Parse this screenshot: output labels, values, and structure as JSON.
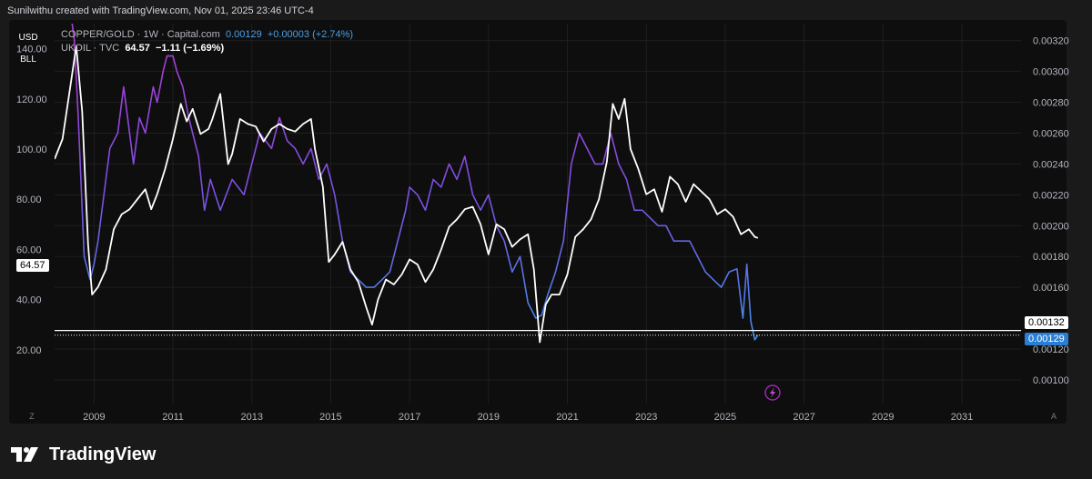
{
  "header": {
    "text": "Sunilwithu created with TradingView.com, Nov 01, 2025 23:46 UTC-4"
  },
  "unit_buttons": [
    "USD",
    "BLL"
  ],
  "legend": {
    "copper_gold": {
      "symbol": "COPPER/GOLD · 1W · Capital.com",
      "value": "0.00129",
      "change": "+0.00003 (+2.74%)"
    },
    "ukoil": {
      "symbol": "UKOIL · TVC",
      "value": "64.57",
      "change": "−1.11 (−1.69%)"
    }
  },
  "price_tags": {
    "left_current": "64.57",
    "right_line": "0.00132",
    "right_current": "0.00129"
  },
  "corner_buttons": {
    "left": "Z",
    "right": "A"
  },
  "footer": {
    "brand": "TradingView"
  },
  "colors": {
    "background": "#1a1a1a",
    "plot_bg": "#0e0e0e",
    "oil_line": "#ffffff",
    "ratio_high": "#b03ad6",
    "ratio_mid": "#7b4fe0",
    "ratio_low": "#3f8fe8",
    "grid": "#1f1f1f",
    "accent_circle": "#9c27b0"
  },
  "icons": {
    "footer_logo": "tradingview-logo-icon",
    "event_marker": "lightning-icon"
  },
  "chart_data": {
    "type": "line",
    "title": "",
    "x_ticks": [
      "2009",
      "2011",
      "2013",
      "2015",
      "2017",
      "2019",
      "2021",
      "2023",
      "2025",
      "2027",
      "2029",
      "2031"
    ],
    "x_range": [
      2008.0,
      2032.5
    ],
    "left_axis": {
      "label": "UKOIL (USD/BLL)",
      "ticks": [
        "140.00",
        "120.00",
        "100.00",
        "80.00",
        "60.00",
        "40.00",
        "20.00"
      ],
      "range": [
        0,
        150
      ]
    },
    "right_axis": {
      "label": "COPPER/GOLD",
      "ticks": [
        "0.00320",
        "0.00300",
        "0.00280",
        "0.00260",
        "0.00240",
        "0.00220",
        "0.00200",
        "0.00180",
        "0.00160",
        "0.00120",
        "0.00100"
      ],
      "range": [
        0.00087,
        0.00331
      ]
    },
    "horizontal_line": 0.00132,
    "series": [
      {
        "name": "UKOIL · TVC",
        "axis": "left",
        "x": [
          2008.0,
          2008.2,
          2008.4,
          2008.55,
          2008.7,
          2008.85,
          2008.95,
          2009.1,
          2009.3,
          2009.5,
          2009.7,
          2009.9,
          2010.1,
          2010.3,
          2010.45,
          2010.6,
          2010.8,
          2011.0,
          2011.2,
          2011.35,
          2011.5,
          2011.7,
          2011.9,
          2012.0,
          2012.2,
          2012.4,
          2012.5,
          2012.7,
          2012.9,
          2013.1,
          2013.3,
          2013.5,
          2013.7,
          2013.9,
          2014.1,
          2014.3,
          2014.5,
          2014.6,
          2014.8,
          2014.95,
          2015.1,
          2015.3,
          2015.5,
          2015.7,
          2015.9,
          2016.05,
          2016.2,
          2016.4,
          2016.6,
          2016.8,
          2017.0,
          2017.2,
          2017.4,
          2017.6,
          2017.8,
          2018.0,
          2018.2,
          2018.4,
          2018.6,
          2018.8,
          2019.0,
          2019.2,
          2019.4,
          2019.6,
          2019.8,
          2020.0,
          2020.15,
          2020.3,
          2020.45,
          2020.6,
          2020.8,
          2021.0,
          2021.2,
          2021.4,
          2021.6,
          2021.8,
          2022.0,
          2022.15,
          2022.3,
          2022.45,
          2022.6,
          2022.8,
          2023.0,
          2023.2,
          2023.4,
          2023.6,
          2023.8,
          2024.0,
          2024.2,
          2024.4,
          2024.6,
          2024.8,
          2025.0,
          2025.2,
          2025.4,
          2025.6,
          2025.75,
          2025.83
        ],
        "values": [
          96,
          104,
          125,
          141,
          115,
          62,
          42,
          45,
          52,
          68,
          74,
          76,
          80,
          84,
          76,
          82,
          92,
          104,
          118,
          111,
          116,
          106,
          108,
          112,
          122,
          94,
          98,
          112,
          110,
          109,
          103,
          108,
          110,
          108,
          107,
          110,
          112,
          100,
          85,
          55,
          58,
          63,
          52,
          47,
          37,
          30,
          40,
          48,
          46,
          50,
          56,
          54,
          47,
          52,
          60,
          69,
          72,
          76,
          77,
          70,
          58,
          70,
          68,
          61,
          64,
          66,
          52,
          23,
          38,
          42,
          42,
          50,
          65,
          68,
          72,
          80,
          95,
          118,
          112,
          120,
          100,
          92,
          82,
          84,
          75,
          89,
          86,
          79,
          86,
          83,
          80,
          74,
          76,
          73,
          66,
          68,
          65,
          64.57
        ]
      },
      {
        "name": "COPPER/GOLD · 1W · Capital.com",
        "axis": "right",
        "x": [
          2008.0,
          2008.2,
          2008.4,
          2008.5,
          2008.6,
          2008.75,
          2008.9,
          2009.0,
          2009.1,
          2009.25,
          2009.4,
          2009.6,
          2009.75,
          2009.9,
          2010.0,
          2010.15,
          2010.3,
          2010.5,
          2010.6,
          2010.75,
          2010.85,
          2011.0,
          2011.1,
          2011.25,
          2011.4,
          2011.5,
          2011.65,
          2011.8,
          2011.95,
          2012.2,
          2012.5,
          2012.8,
          2013.0,
          2013.2,
          2013.5,
          2013.7,
          2013.9,
          2014.1,
          2014.3,
          2014.5,
          2014.7,
          2014.9,
          2015.1,
          2015.3,
          2015.5,
          2015.7,
          2015.9,
          2016.1,
          2016.3,
          2016.5,
          2016.7,
          2016.9,
          2017.0,
          2017.2,
          2017.4,
          2017.6,
          2017.8,
          2018.0,
          2018.2,
          2018.4,
          2018.6,
          2018.8,
          2019.0,
          2019.2,
          2019.4,
          2019.6,
          2019.8,
          2020.0,
          2020.2,
          2020.35,
          2020.5,
          2020.7,
          2020.9,
          2021.1,
          2021.3,
          2021.5,
          2021.7,
          2021.9,
          2022.1,
          2022.3,
          2022.5,
          2022.7,
          2022.9,
          2023.1,
          2023.3,
          2023.5,
          2023.7,
          2023.9,
          2024.1,
          2024.3,
          2024.5,
          2024.7,
          2024.9,
          2025.1,
          2025.3,
          2025.45,
          2025.55,
          2025.65,
          2025.75,
          2025.83
        ],
        "values": [
          0.0034,
          0.0034,
          0.0034,
          0.0032,
          0.0027,
          0.0018,
          0.00165,
          0.00175,
          0.0019,
          0.0022,
          0.0025,
          0.0026,
          0.0029,
          0.0026,
          0.0024,
          0.0027,
          0.0026,
          0.0029,
          0.0028,
          0.003,
          0.0031,
          0.0031,
          0.003,
          0.0029,
          0.0027,
          0.0026,
          0.00245,
          0.0021,
          0.0023,
          0.0021,
          0.0023,
          0.0022,
          0.0024,
          0.0026,
          0.0025,
          0.0027,
          0.00255,
          0.0025,
          0.0024,
          0.0025,
          0.0023,
          0.0024,
          0.0022,
          0.0019,
          0.0017,
          0.00165,
          0.0016,
          0.0016,
          0.00165,
          0.0017,
          0.0019,
          0.0021,
          0.00225,
          0.0022,
          0.0021,
          0.0023,
          0.00225,
          0.0024,
          0.0023,
          0.00245,
          0.0022,
          0.0021,
          0.0022,
          0.002,
          0.0019,
          0.0017,
          0.0018,
          0.0015,
          0.0014,
          0.00142,
          0.00155,
          0.0017,
          0.0019,
          0.0024,
          0.0026,
          0.0025,
          0.0024,
          0.0024,
          0.0026,
          0.0024,
          0.0023,
          0.0021,
          0.0021,
          0.00205,
          0.002,
          0.002,
          0.0019,
          0.0019,
          0.0019,
          0.0018,
          0.0017,
          0.00165,
          0.0016,
          0.0017,
          0.00172,
          0.0014,
          0.00175,
          0.00138,
          0.00126,
          0.00129
        ]
      }
    ]
  }
}
